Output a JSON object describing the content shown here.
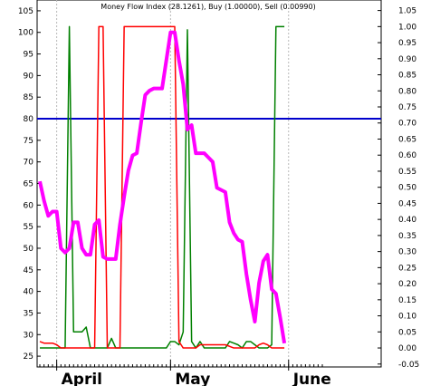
{
  "chart_data": {
    "type": "line",
    "title": "Money Flow Index (28.1261), Buy (1.00000), Sell (0.00990)",
    "left_axis": {
      "ticks": [
        25,
        30,
        35,
        40,
        45,
        50,
        55,
        60,
        65,
        70,
        75,
        80,
        85,
        90,
        95,
        100,
        105
      ],
      "labels": [
        "25",
        "30",
        "35",
        "40",
        "45",
        "50",
        "55",
        "60",
        "65",
        "70",
        "75",
        "80",
        "85",
        "90",
        "95",
        "100",
        "105"
      ],
      "range": [
        22.5,
        107.5
      ]
    },
    "right_axis": {
      "ticks": [
        -0.05,
        0.0,
        0.05,
        0.1,
        0.15,
        0.2,
        0.25,
        0.3,
        0.35,
        0.4,
        0.45,
        0.5,
        0.55,
        0.6,
        0.65,
        0.7,
        0.75,
        0.8,
        0.85,
        0.9,
        0.95,
        1.0,
        1.05
      ],
      "labels": [
        "-0.05",
        "0.00",
        "0.05",
        "0.10",
        "0.15",
        "0.20",
        "0.25",
        "0.30",
        "0.35",
        "0.40",
        "0.45",
        "0.50",
        "0.55",
        "0.60",
        "0.65",
        "0.70",
        "0.75",
        "0.80",
        "0.85",
        "0.90",
        "0.95",
        "1.00",
        "1.05"
      ],
      "range": [
        -0.0591,
        1.0827
      ]
    },
    "x_axis": {
      "month_labels": [
        {
          "label": "April",
          "bar": 4
        },
        {
          "label": "May",
          "bar": 31
        },
        {
          "label": "June",
          "bar": 59
        }
      ],
      "bar_count": 68,
      "bar_range": [
        0,
        67
      ]
    },
    "reference_line": {
      "value": 80,
      "axis": "left",
      "color": "#0000cc"
    },
    "series": [
      {
        "axis": "left",
        "color": "#ff00ff",
        "points": [
          [
            0,
            65.5
          ],
          [
            1,
            61
          ],
          [
            2,
            57.5
          ],
          [
            3,
            58.5
          ],
          [
            4,
            58.5
          ],
          [
            5,
            50
          ],
          [
            6,
            49
          ],
          [
            7,
            50
          ],
          [
            8,
            56
          ],
          [
            9,
            56
          ],
          [
            10,
            50
          ],
          [
            11,
            48.5
          ],
          [
            12,
            48.5
          ],
          [
            13,
            55.5
          ],
          [
            14,
            56.5
          ],
          [
            15,
            48
          ],
          [
            16,
            47.5
          ],
          [
            17,
            47.5
          ],
          [
            18,
            47.5
          ],
          [
            19,
            55.5
          ],
          [
            20,
            62
          ],
          [
            21,
            68
          ],
          [
            22,
            71.5
          ],
          [
            23,
            72
          ],
          [
            24,
            79
          ],
          [
            25,
            85.5
          ],
          [
            26,
            86.5
          ],
          [
            27,
            87
          ],
          [
            28,
            87
          ],
          [
            29,
            87
          ],
          [
            30,
            93.5
          ],
          [
            31,
            100
          ],
          [
            32,
            100
          ],
          [
            33,
            93.5
          ],
          [
            34,
            88
          ],
          [
            35,
            77.5
          ],
          [
            36,
            78.5
          ],
          [
            37,
            72
          ],
          [
            38,
            72
          ],
          [
            39,
            72
          ],
          [
            40,
            71
          ],
          [
            41,
            70
          ],
          [
            42,
            64
          ],
          [
            43,
            63.5
          ],
          [
            44,
            63
          ],
          [
            45,
            56
          ],
          [
            46,
            53.5
          ],
          [
            47,
            52
          ],
          [
            48,
            51.5
          ],
          [
            49,
            44
          ],
          [
            50,
            38
          ],
          [
            51,
            33
          ],
          [
            52,
            42
          ],
          [
            53,
            47
          ],
          [
            54,
            48.5
          ],
          [
            55,
            40.5
          ],
          [
            56,
            39.5
          ],
          [
            57,
            34
          ],
          [
            58,
            28
          ]
        ]
      },
      {
        "axis": "right",
        "color": "#008000",
        "points": [
          [
            0,
            0.0
          ],
          [
            1,
            0.0
          ],
          [
            2,
            0.0
          ],
          [
            3,
            0.0
          ],
          [
            4,
            0.0
          ],
          [
            5,
            0.0
          ],
          [
            6,
            0.0
          ],
          [
            7,
            1.0
          ],
          [
            8,
            0.05
          ],
          [
            9,
            0.05
          ],
          [
            10,
            0.05
          ],
          [
            11,
            0.065
          ],
          [
            12,
            0.0
          ],
          [
            13,
            0.0
          ],
          [
            14,
            0.0
          ],
          [
            15,
            0.0
          ],
          [
            16,
            0.0
          ],
          [
            17,
            0.03
          ],
          [
            18,
            0.0
          ],
          [
            19,
            0.0
          ],
          [
            20,
            0.0
          ],
          [
            21,
            0.0
          ],
          [
            22,
            0.0
          ],
          [
            23,
            0.0
          ],
          [
            24,
            0.0
          ],
          [
            25,
            0.0
          ],
          [
            26,
            0.0
          ],
          [
            27,
            0.0
          ],
          [
            28,
            0.0
          ],
          [
            29,
            0.0
          ],
          [
            30,
            0.0
          ],
          [
            31,
            0.02
          ],
          [
            32,
            0.02
          ],
          [
            33,
            0.01
          ],
          [
            34,
            0.05
          ],
          [
            35,
            0.99
          ],
          [
            36,
            0.02
          ],
          [
            37,
            0.0
          ],
          [
            38,
            0.02
          ],
          [
            39,
            0.0
          ],
          [
            40,
            0.0
          ],
          [
            41,
            0.0
          ],
          [
            42,
            0.0
          ],
          [
            43,
            0.0
          ],
          [
            44,
            0.0
          ],
          [
            45,
            0.02
          ],
          [
            46,
            0.015
          ],
          [
            47,
            0.01
          ],
          [
            48,
            0.0
          ],
          [
            49,
            0.02
          ],
          [
            50,
            0.02
          ],
          [
            51,
            0.01
          ],
          [
            52,
            0.0
          ],
          [
            53,
            0.0
          ],
          [
            54,
            0.0
          ],
          [
            55,
            0.01
          ],
          [
            56,
            1.0
          ],
          [
            57,
            1.0
          ],
          [
            58,
            1.0
          ]
        ]
      },
      {
        "axis": "right",
        "color": "#ff0000",
        "points": [
          [
            0,
            0.02
          ],
          [
            1,
            0.015
          ],
          [
            2,
            0.015
          ],
          [
            3,
            0.015
          ],
          [
            4,
            0.01
          ],
          [
            5,
            0.0
          ],
          [
            6,
            0.0
          ],
          [
            7,
            0.0
          ],
          [
            8,
            0.0
          ],
          [
            9,
            0.0
          ],
          [
            10,
            0.0
          ],
          [
            11,
            0.0
          ],
          [
            12,
            0.0
          ],
          [
            13,
            0.0
          ],
          [
            14,
            1.0
          ],
          [
            15,
            1.0
          ],
          [
            16,
            0.0
          ],
          [
            17,
            0.0
          ],
          [
            18,
            0.0
          ],
          [
            19,
            0.0
          ],
          [
            20,
            1.0
          ],
          [
            21,
            1.0
          ],
          [
            22,
            1.0
          ],
          [
            23,
            1.0
          ],
          [
            24,
            1.0
          ],
          [
            25,
            1.0
          ],
          [
            26,
            1.0
          ],
          [
            27,
            1.0
          ],
          [
            28,
            1.0
          ],
          [
            29,
            1.0
          ],
          [
            30,
            1.0
          ],
          [
            31,
            1.0
          ],
          [
            32,
            1.0
          ],
          [
            33,
            0.02
          ],
          [
            34,
            0.0
          ],
          [
            35,
            0.0
          ],
          [
            36,
            0.0
          ],
          [
            37,
            0.0
          ],
          [
            38,
            0.01
          ],
          [
            39,
            0.01
          ],
          [
            40,
            0.01
          ],
          [
            41,
            0.01
          ],
          [
            42,
            0.01
          ],
          [
            43,
            0.01
          ],
          [
            44,
            0.01
          ],
          [
            45,
            0.005
          ],
          [
            46,
            0.0
          ],
          [
            47,
            0.0
          ],
          [
            48,
            0.0
          ],
          [
            49,
            0.0
          ],
          [
            50,
            0.0
          ],
          [
            51,
            0.0
          ],
          [
            52,
            0.01
          ],
          [
            53,
            0.015
          ],
          [
            54,
            0.01
          ],
          [
            55,
            0.0
          ],
          [
            56,
            0.0
          ],
          [
            57,
            0.0
          ],
          [
            58,
            0.0
          ]
        ]
      }
    ],
    "grid": {
      "vertical": true,
      "horizontal": false
    }
  }
}
